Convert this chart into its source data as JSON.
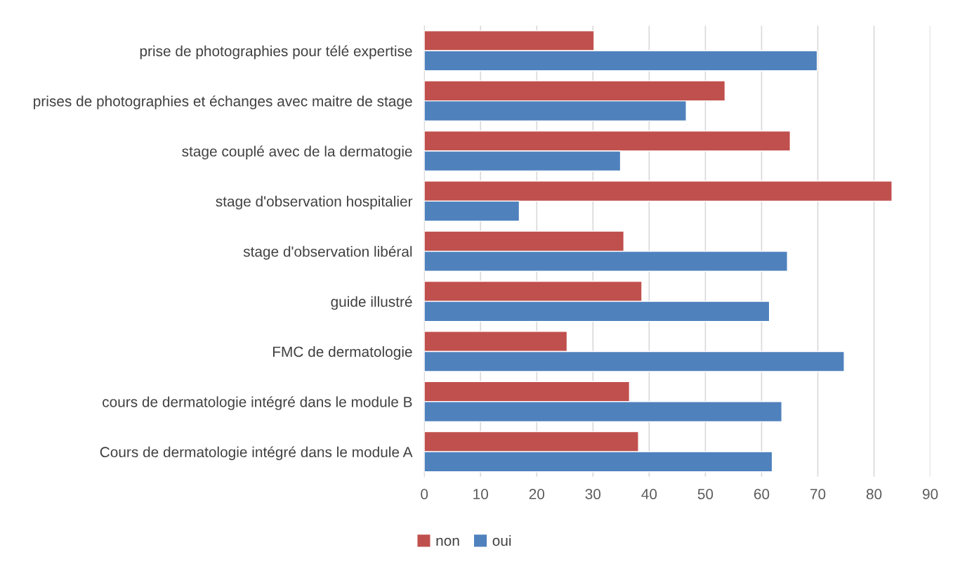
{
  "chart_data": {
    "type": "bar",
    "orientation": "horizontal",
    "categories": [
      "prise de photographies pour télé expertise",
      "prises de photographies et échanges avec maitre de stage",
      "stage couplé avec de la dermatogie",
      "stage d'observation hospitalier",
      "stage d'observation libéral",
      "guide illustré",
      "FMC de dermatologie",
      "cours de dermatologie intégré dans le module B",
      "Cours de dermatologie intégré dans le module A"
    ],
    "series": [
      {
        "name": "non",
        "color": "#c0504d",
        "values": [
          30.2,
          53.5,
          65.1,
          83.2,
          35.5,
          38.7,
          25.4,
          36.5,
          38.1
        ]
      },
      {
        "name": "oui",
        "color": "#4f81bd",
        "values": [
          69.9,
          46.6,
          34.9,
          16.9,
          64.6,
          61.4,
          74.7,
          63.6,
          61.9
        ]
      }
    ],
    "xlim": [
      0,
      90
    ],
    "xticks": [
      0,
      10,
      20,
      30,
      40,
      50,
      60,
      70,
      80,
      90
    ],
    "grid": "x",
    "legend": "bottom"
  }
}
